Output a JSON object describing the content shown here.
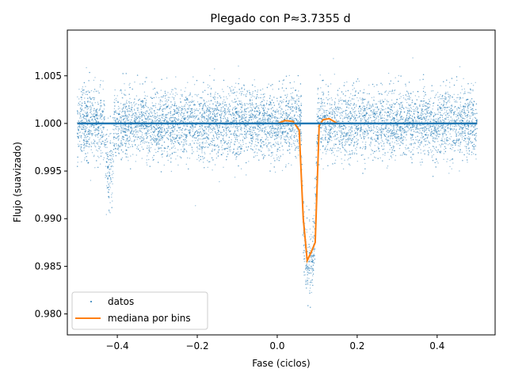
{
  "chart_data": {
    "type": "scatter",
    "title": "Plegado con P≈3.7355 d",
    "xlabel": "Fase (ciclos)",
    "ylabel": "Flujo (suavizado)",
    "xlim": [
      -0.525,
      0.545
    ],
    "ylim": [
      0.9778,
      1.0098
    ],
    "xticks": [
      -0.4,
      -0.2,
      0.0,
      0.2,
      0.4
    ],
    "xtick_labels": [
      "−0.4",
      "−0.2",
      "0.0",
      "0.2",
      "0.4"
    ],
    "yticks": [
      0.98,
      0.985,
      0.99,
      0.995,
      1.0,
      1.005
    ],
    "ytick_labels": [
      "0.980",
      "0.985",
      "0.990",
      "0.995",
      "1.000",
      "1.005"
    ],
    "grid": false,
    "legend_position": "lower-left",
    "colors": {
      "datos": "#1f77b4",
      "mediana": "#ff7f0e"
    },
    "series": [
      {
        "name": "datos",
        "style": "points",
        "phase_range": [
          -0.5,
          0.5
        ],
        "baseline": 1.0,
        "scatter_sigma": 0.0018,
        "transit": {
          "center": 0.08,
          "depth": 0.0145,
          "half_width": 0.02
        },
        "secondary_dip": {
          "center": -0.42,
          "depth": 0.007,
          "half_width": 0.012
        }
      },
      {
        "name": "mediana por bins",
        "style": "line",
        "x": [
          -0.5,
          -0.45,
          -0.4,
          -0.35,
          -0.3,
          -0.25,
          -0.2,
          -0.15,
          -0.1,
          -0.05,
          0.0,
          0.02,
          0.04,
          0.055,
          0.065,
          0.075,
          0.085,
          0.095,
          0.105,
          0.115,
          0.13,
          0.15,
          0.2,
          0.25,
          0.3,
          0.35,
          0.4,
          0.45,
          0.5
        ],
        "y": [
          1.0,
          1.0,
          1.0,
          1.0,
          1.0,
          1.0,
          1.0,
          1.0,
          1.0,
          1.0,
          1.0,
          1.0003,
          1.0002,
          0.9993,
          0.99,
          0.9856,
          0.9865,
          0.9875,
          0.9998,
          1.0004,
          1.0005,
          1.0,
          1.0,
          1.0,
          1.0,
          1.0,
          1.0,
          1.0,
          1.0
        ]
      }
    ]
  }
}
